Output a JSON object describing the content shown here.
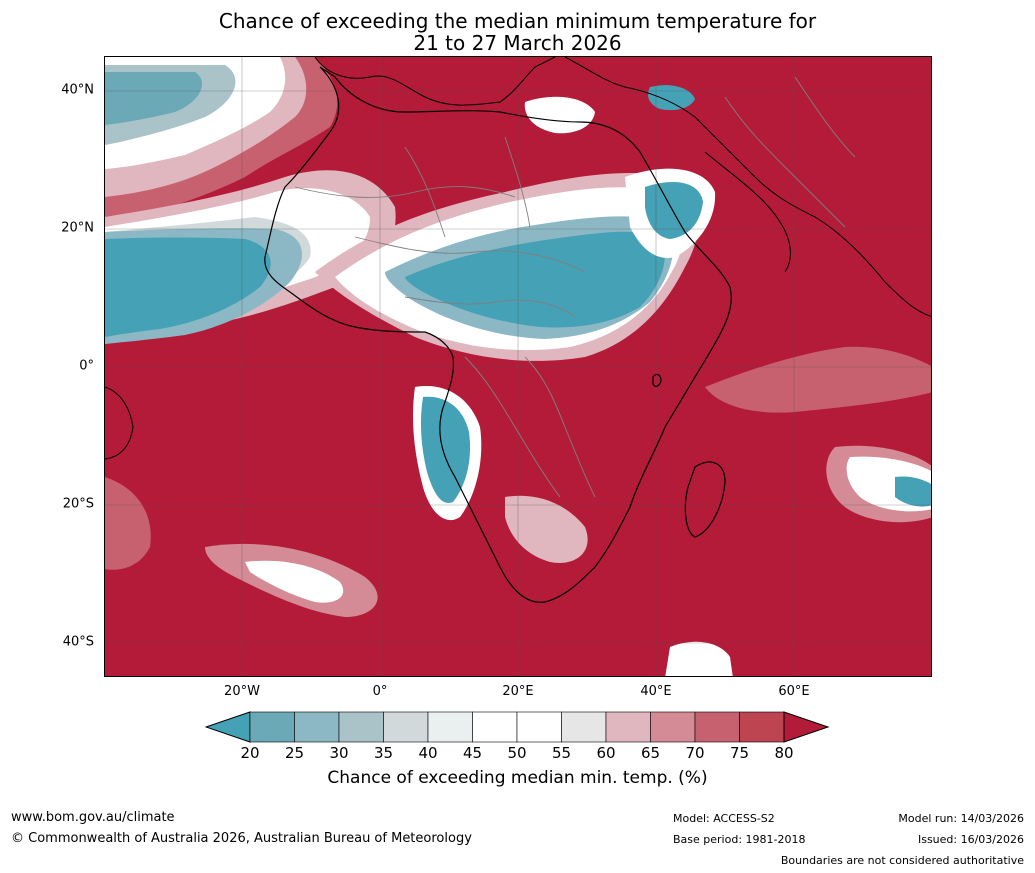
{
  "title": {
    "line1": "Chance of exceeding the median minimum temperature for",
    "line2": "21 to 27 March 2026"
  },
  "map": {
    "lat_labels": [
      "40°N",
      "20°N",
      "0°",
      "20°S",
      "40°S"
    ],
    "lon_labels": [
      "20°W",
      "0°",
      "20°E",
      "40°E",
      "60°E"
    ],
    "colors": {
      "high": "#b31b38",
      "low": "#45a1b5",
      "mid": "#ffffff",
      "border": "#7a7a7a"
    }
  },
  "colorbar": {
    "ticks": [
      "20",
      "25",
      "30",
      "35",
      "40",
      "45",
      "50",
      "55",
      "60",
      "65",
      "70",
      "75",
      "80"
    ],
    "colors": [
      "#45a1b5",
      "#6aa9b5",
      "#8cb8c5",
      "#a9c3c9",
      "#d2d9db",
      "#eaeff0",
      "#ffffff",
      "#ffffff",
      "#e6e6e6",
      "#e0b6bf",
      "#d48b96",
      "#c8616f",
      "#bd4451",
      "#b31b38"
    ],
    "title": "Chance of exceeding median min. temp. (%)"
  },
  "footer": {
    "website": "www.bom.gov.au/climate",
    "copyright": "© Commonwealth of Australia 2026, Australian Bureau of Meteorology",
    "model": "Model: ACCESS-S2",
    "base_period": "Base period: 1981-2018",
    "model_run": "Model run: 14/03/2026",
    "issued": "Issued: 16/03/2026",
    "disclaimer": "Boundaries are not considered authoritative"
  }
}
